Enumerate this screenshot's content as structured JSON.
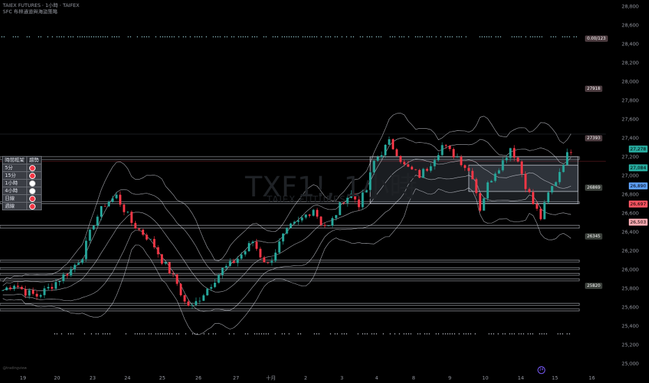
{
  "header": {
    "line1": "TAIEX FUTURES · 1小時 · TAIFEX",
    "line2": "SFC 布林通道與海盜策略"
  },
  "watermark": {
    "symbol": "TXF1!, 1小時",
    "name": "TAIEX FUTURES"
  },
  "trend_table": {
    "headers": [
      "時間框架",
      "趨勢"
    ],
    "rows": [
      {
        "tf": "5分",
        "trend": "red"
      },
      {
        "tf": "15分",
        "trend": "red"
      },
      {
        "tf": "1小時",
        "trend": "white"
      },
      {
        "tf": "4小時",
        "trend": "white"
      },
      {
        "tf": "日線",
        "trend": "red"
      },
      {
        "tf": "週線",
        "trend": "red"
      }
    ]
  },
  "tags": [
    {
      "text": "0.00/123",
      "price": 28450
    },
    {
      "text": "27918",
      "price": 27918
    },
    {
      "text": "27393",
      "price": 27393
    },
    {
      "text": "26869",
      "price": 26869
    },
    {
      "text": "26345",
      "price": 26345
    },
    {
      "text": "25820",
      "price": 25820
    }
  ],
  "price_labels": [
    {
      "text": "27,278",
      "price": 27278,
      "bg": "#26a69a",
      "fg": "#000000"
    },
    {
      "text": "27,084",
      "price": 27084,
      "bg": "#26a69a",
      "fg": "#000000"
    },
    {
      "text": "26,890",
      "price": 26890,
      "bg": "#5b9cf6",
      "fg": "#000000"
    },
    {
      "text": "26,697",
      "price": 26697,
      "bg": "#f7525f",
      "fg": "#000000"
    },
    {
      "text": "26,503",
      "price": 26503,
      "bg": "#f7a6ad",
      "fg": "#000000"
    }
  ],
  "logo_text": "@tradingview",
  "event_icon": "24",
  "colors": {
    "up": "#26a69a",
    "down": "#f23645",
    "band": "#d1d4dc",
    "zone": "#b2b5be"
  },
  "chart_data": {
    "type": "candlestick",
    "title": "TAIEX FUTURES · 1小時 · TAIFEX",
    "ylim": [
      25000,
      28800
    ],
    "y_ticks": [
      25000,
      25200,
      25400,
      25600,
      25800,
      26000,
      26200,
      26400,
      26600,
      26800,
      27000,
      27200,
      27400,
      27600,
      27800,
      28000,
      28200,
      28400,
      28600,
      28800
    ],
    "x_ticks": [
      "19",
      "20",
      "23",
      "24",
      "25",
      "26",
      "27",
      "十月",
      "2",
      "3",
      "4",
      "8",
      "9",
      "10",
      "14",
      "15",
      "16"
    ],
    "close_path": [
      [
        0,
        25780
      ],
      [
        3,
        25850
      ],
      [
        6,
        25760
      ],
      [
        9,
        25720
      ],
      [
        12,
        25800
      ],
      [
        15,
        25900
      ],
      [
        18,
        26000
      ],
      [
        21,
        26150
      ],
      [
        24,
        26500
      ],
      [
        27,
        26700
      ],
      [
        30,
        26780
      ],
      [
        32,
        26640
      ],
      [
        34,
        26500
      ],
      [
        36,
        26420
      ],
      [
        38,
        26350
      ],
      [
        40,
        26250
      ],
      [
        42,
        26100
      ],
      [
        44,
        25980
      ],
      [
        46,
        25850
      ],
      [
        48,
        25650
      ],
      [
        50,
        25600
      ],
      [
        52,
        25700
      ],
      [
        54,
        25800
      ],
      [
        56,
        25900
      ],
      [
        58,
        26000
      ],
      [
        60,
        26050
      ],
      [
        62,
        26120
      ],
      [
        64,
        26200
      ],
      [
        66,
        26300
      ],
      [
        68,
        26150
      ],
      [
        70,
        26050
      ],
      [
        72,
        26200
      ],
      [
        74,
        26350
      ],
      [
        76,
        26450
      ],
      [
        78,
        26500
      ],
      [
        80,
        26580
      ],
      [
        82,
        26650
      ],
      [
        84,
        26500
      ],
      [
        86,
        26450
      ],
      [
        88,
        26600
      ],
      [
        90,
        26750
      ],
      [
        92,
        26800
      ],
      [
        94,
        26700
      ],
      [
        96,
        26850
      ],
      [
        98,
        27150
      ],
      [
        100,
        27250
      ],
      [
        102,
        27350
      ],
      [
        104,
        27250
      ],
      [
        106,
        27100
      ],
      [
        108,
        27050
      ],
      [
        110,
        27000
      ],
      [
        112,
        27080
      ],
      [
        114,
        27200
      ],
      [
        116,
        27320
      ],
      [
        118,
        27250
      ],
      [
        120,
        27200
      ],
      [
        122,
        27100
      ],
      [
        124,
        27000
      ],
      [
        126,
        26650
      ],
      [
        128,
        26900
      ],
      [
        130,
        27050
      ],
      [
        132,
        27150
      ],
      [
        134,
        27300
      ],
      [
        136,
        27150
      ],
      [
        138,
        26900
      ],
      [
        140,
        26700
      ],
      [
        142,
        26550
      ],
      [
        144,
        26800
      ],
      [
        146,
        26950
      ],
      [
        148,
        27150
      ],
      [
        150,
        27278
      ]
    ],
    "support_resistance_zones": [
      [
        27170,
        27200
      ],
      [
        26700,
        26720
      ],
      [
        26440,
        26470
      ],
      [
        26080,
        26100
      ],
      [
        26000,
        26020
      ],
      [
        25940,
        25960
      ],
      [
        25880,
        25900
      ],
      [
        25620,
        25640
      ],
      [
        25560,
        25580
      ]
    ],
    "boxes": [
      {
        "from": 97,
        "to": 150,
        "high": 27200,
        "low": 26700
      },
      {
        "from": 123,
        "to": 150,
        "high": 27110,
        "low": 26830
      }
    ]
  }
}
